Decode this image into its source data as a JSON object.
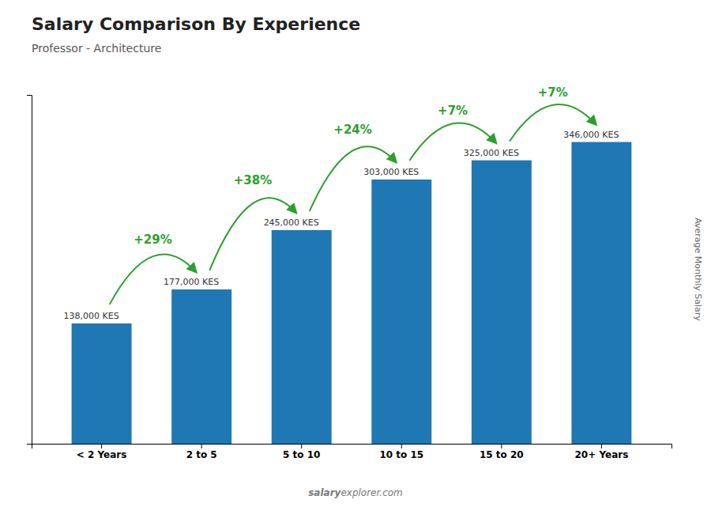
{
  "chart_data": {
    "type": "bar",
    "title": "Salary Comparison By Experience",
    "subtitle": "Professor - Architecture",
    "ylabel": "Average Monthly Salary",
    "categories": [
      "< 2 Years",
      "2 to 5",
      "5 to 10",
      "10 to 15",
      "15 to 20",
      "20+ Years"
    ],
    "values": [
      138000,
      177000,
      245000,
      303000,
      325000,
      346000
    ],
    "value_labels": [
      "138,000 KES",
      "177,000 KES",
      "245,000 KES",
      "303,000 KES",
      "325,000 KES",
      "346,000 KES"
    ],
    "data_labels": true,
    "annotations": [
      null,
      "+29%",
      "+38%",
      "+24%",
      "+7%",
      "+7%"
    ],
    "ylim": [
      0,
      400000
    ],
    "tick_labels": "x",
    "grid": false,
    "watermark": [
      "salary",
      "explorer.com"
    ]
  }
}
